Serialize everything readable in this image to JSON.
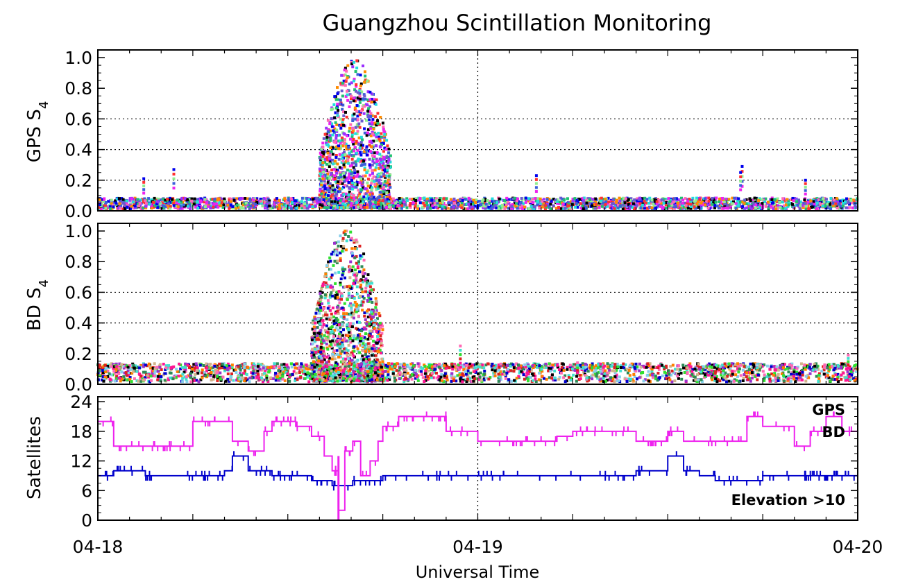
{
  "chart_data": [
    {
      "type": "scatter",
      "panel": "gps",
      "title": "Guangzhou Scintillation Monitoring",
      "ylabel": "GPS S",
      "ylabel_sub": "4",
      "ylim": [
        0,
        1.05
      ],
      "yticks": [
        0.0,
        0.2,
        0.4,
        0.6,
        0.8,
        1.0
      ],
      "ytick_labels": [
        "0.0",
        "0.2",
        "0.4",
        "0.6",
        "0.8",
        "1.0"
      ],
      "grid": "dotted horizontal at 0.2, 0.4, 0.6; dotted vertical at 04-19",
      "baseline_level": 0.06,
      "storm_window_hours": [
        14,
        18.5
      ],
      "storm_peak": 0.98,
      "spikes": [
        {
          "t": 2.9,
          "y": 0.21
        },
        {
          "t": 4.8,
          "y": 0.27
        },
        {
          "t": 27.7,
          "y": 0.23
        },
        {
          "t": 40.7,
          "y": 0.29
        },
        {
          "t": 40.6,
          "y": 0.25
        },
        {
          "t": 44.7,
          "y": 0.2
        }
      ],
      "series": [
        {
          "color": "#22dddd"
        },
        {
          "color": "#9b30ff"
        },
        {
          "color": "#ee22ee"
        },
        {
          "color": "#3b5fd9"
        },
        {
          "color": "#90ee90"
        },
        {
          "color": "#ff3030"
        },
        {
          "color": "#0000ee"
        },
        {
          "color": "#000000"
        },
        {
          "color": "#ff8c00"
        },
        {
          "color": "#20c070"
        },
        {
          "color": "#ff69b4"
        },
        {
          "color": "#6a5acd"
        }
      ]
    },
    {
      "type": "scatter",
      "panel": "bd",
      "ylabel": "BD S",
      "ylabel_sub": "4",
      "ylim": [
        0,
        1.05
      ],
      "yticks": [
        0.0,
        0.2,
        0.4,
        0.6,
        0.8,
        1.0
      ],
      "ytick_labels": [
        "0.0",
        "0.2",
        "0.4",
        "0.6",
        "0.8",
        "1.0"
      ],
      "grid": "dotted horizontal at 0.2, 0.4, 0.6; dotted vertical at 04-19",
      "baseline_level": 0.08,
      "band_level": 0.12,
      "storm_window_hours": [
        13.5,
        18
      ],
      "storm_peak": 1.0,
      "spikes": [
        {
          "t": 22.9,
          "y": 0.25
        },
        {
          "t": 30.3,
          "y": 0.14
        },
        {
          "t": 47.4,
          "y": 0.19
        }
      ],
      "series": [
        {
          "color": "#2e8b57"
        },
        {
          "color": "#ff7f00"
        },
        {
          "color": "#ff1493"
        },
        {
          "color": "#dd2222"
        },
        {
          "color": "#30e030"
        },
        {
          "color": "#40e0d0"
        },
        {
          "color": "#ff69b4"
        },
        {
          "color": "#9932cc"
        },
        {
          "color": "#87ceeb"
        },
        {
          "color": "#d2b48c"
        },
        {
          "color": "#0000cd"
        },
        {
          "color": "#000000"
        }
      ]
    },
    {
      "type": "line",
      "panel": "satellites",
      "ylabel": "Satellites",
      "ylim": [
        0,
        25
      ],
      "yticks": [
        0,
        6,
        12,
        18,
        24
      ],
      "ytick_labels": [
        "0",
        "6",
        "12",
        "18",
        "24"
      ],
      "annotation": "Elevation >10",
      "x": [
        0,
        1,
        3,
        6,
        8,
        8.5,
        9.5,
        10.5,
        11,
        12.5,
        13.5,
        14.3,
        14.8,
        15.2,
        15.6,
        16.1,
        16.6,
        17.2,
        17.7,
        18,
        19,
        19.5,
        20.5,
        21,
        22,
        24,
        28,
        29,
        30,
        31,
        34,
        36,
        37,
        38,
        39,
        40,
        41,
        42,
        44,
        45,
        46,
        47,
        48
      ],
      "series": [
        {
          "name": "GPS",
          "color": "#0000cc",
          "values": [
            9,
            10,
            9,
            9,
            10,
            13,
            10,
            10,
            9,
            9,
            8,
            8,
            7,
            7,
            7,
            8,
            8,
            8,
            8,
            9,
            9,
            9,
            9,
            9,
            9,
            9,
            9,
            9,
            9,
            9,
            10,
            13,
            10,
            9,
            8,
            8,
            8,
            9,
            9,
            9,
            9,
            9,
            9
          ]
        },
        {
          "name": "BD",
          "color": "#ee22ee",
          "values": [
            20,
            15,
            15,
            20,
            20,
            16,
            14,
            18,
            20,
            19,
            17,
            13,
            10,
            2,
            14,
            16,
            9,
            12,
            16,
            19,
            21,
            21,
            21,
            21,
            18,
            16,
            16,
            17,
            18,
            18,
            16,
            18,
            16,
            16,
            16,
            16,
            21,
            19,
            15,
            18,
            21,
            18,
            17
          ]
        }
      ]
    }
  ],
  "x_axis": {
    "label": "Universal Time",
    "range_hours": [
      0,
      48
    ],
    "ticks": [
      {
        "t": 0,
        "label": "04-18"
      },
      {
        "t": 24,
        "label": "04-19"
      },
      {
        "t": 48,
        "label": "04-20"
      }
    ]
  }
}
